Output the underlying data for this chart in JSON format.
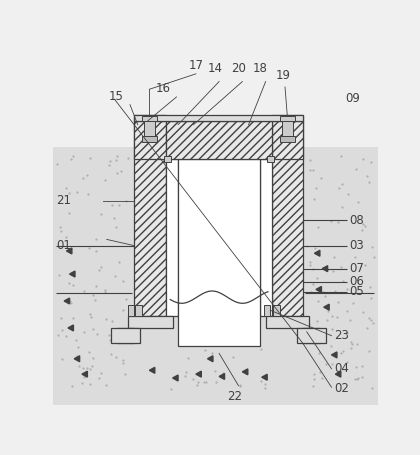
{
  "figsize": [
    4.2,
    4.55
  ],
  "dpi": 100,
  "bg_color": "#f0f0f0",
  "soil_color": "#dcdcdc",
  "line_color": "#404040",
  "hatch_fill": "#e8e8e8",
  "white": "#ffffff",
  "label_fs": 8.5
}
